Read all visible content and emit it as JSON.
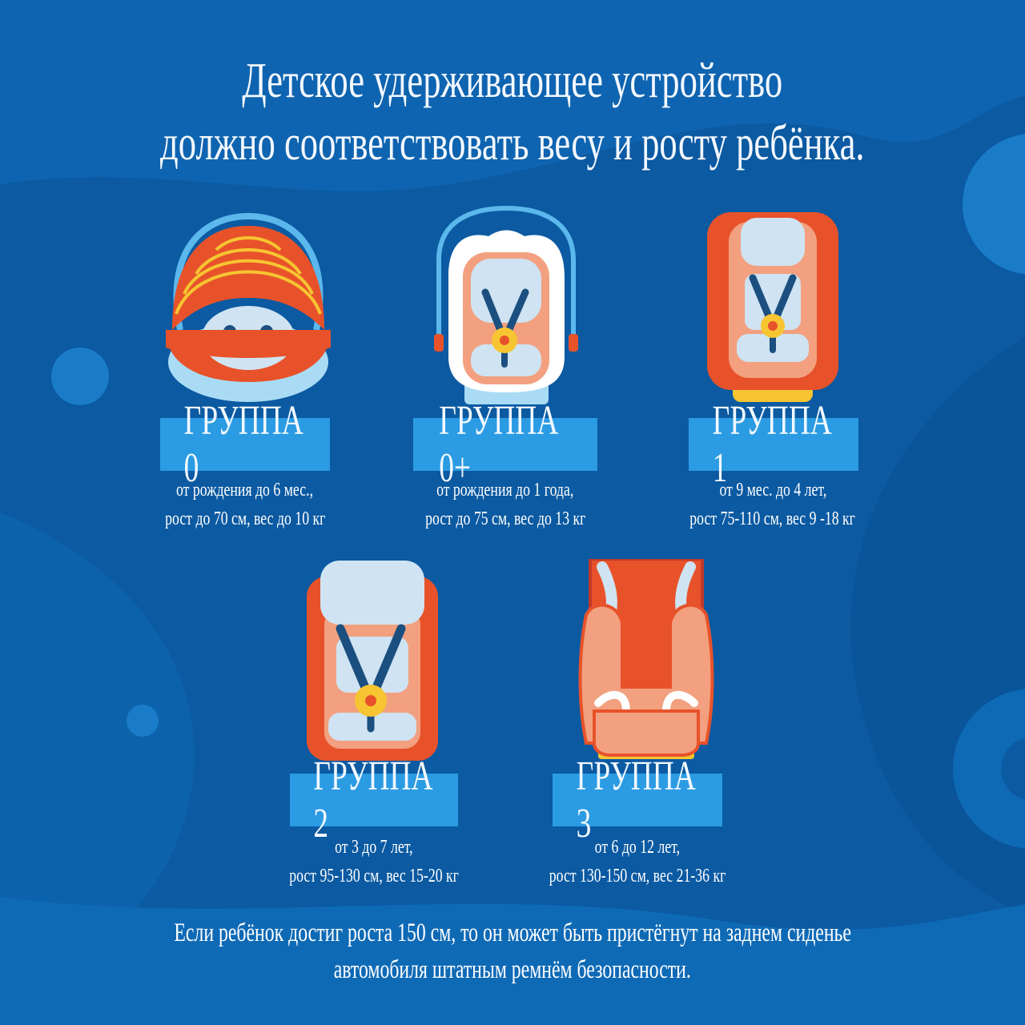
{
  "title": {
    "line1": "Детское удерживающее устройство",
    "line2": "должно соответствовать весу и росту ребёнка."
  },
  "groups": [
    {
      "label": "ГРУППА 0",
      "line1": "от рождения до 6 мес.,",
      "line2": "рост до 70 см, вес до 10 кг",
      "icon": "baby-carrycot-icon"
    },
    {
      "label": "ГРУППА 0+",
      "line1": "от рождения до 1 года,",
      "line2": "рост до 75 см, вес до 13 кг",
      "icon": "infant-carrier-icon"
    },
    {
      "label": "ГРУППА 1",
      "line1": "от 9 мес. до 4 лет,",
      "line2": "рост 75-110 см, вес 9 -18 кг",
      "icon": "child-seat-icon"
    },
    {
      "label": "ГРУППА 2",
      "line1": "от 3 до 7 лет,",
      "line2": "рост 95-130 см, вес 15-20 кг",
      "icon": "child-seat-icon"
    },
    {
      "label": "ГРУППА 3",
      "line1": "от 6 до 12 лет,",
      "line2": "рост 130-150 см, вес 21-36 кг",
      "icon": "booster-seat-icon"
    }
  ],
  "footer": {
    "line1": "Если ребёнок достиг роста 150 см, то он может быть пристёгнут на заднем сиденье",
    "line2": "автомобиля штатным ремнём безопасности."
  },
  "colors": {
    "background": "#0b5aa2",
    "label_box": "#2b9be3",
    "seat_orange": "#e8522a",
    "seat_peach": "#f2a07f",
    "pad": "#cfe3f2",
    "strap": "#1b4f80",
    "buckle": "#f6c531"
  }
}
